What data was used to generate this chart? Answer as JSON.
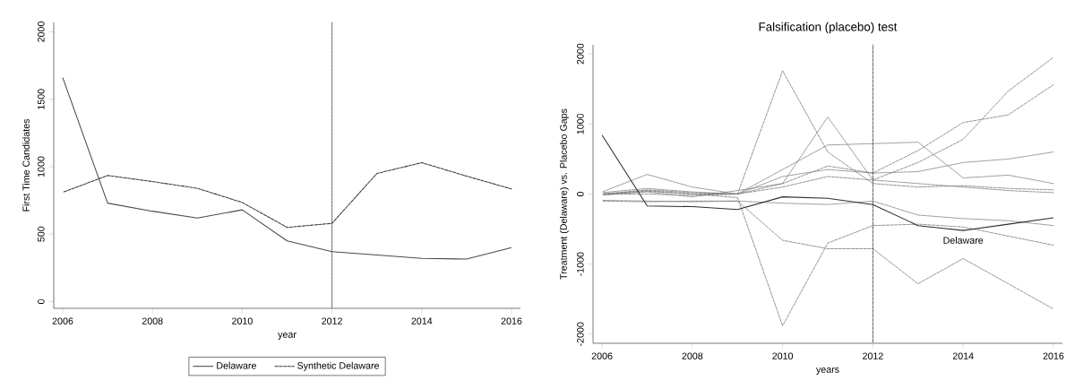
{
  "chart_data": [
    {
      "type": "line",
      "xlabel": "year",
      "ylabel": "First Time Candidates",
      "x": [
        2006,
        2007,
        2008,
        2009,
        2010,
        2011,
        2012,
        2013,
        2014,
        2015,
        2016
      ],
      "series": [
        {
          "name": "Delaware",
          "color": "#4a4a4a",
          "line_style": "solid",
          "values": [
            1660,
            730,
            670,
            620,
            680,
            450,
            370,
            345,
            320,
            315,
            400
          ]
        },
        {
          "name": "Synthetic Delaware",
          "color": "#3a3a3a",
          "line_style": "dashed",
          "values": [
            810,
            935,
            890,
            840,
            735,
            550,
            580,
            950,
            1030,
            930,
            835
          ]
        }
      ],
      "xlim": [
        2005.8,
        2016.2
      ],
      "ylim": [
        -50,
        2070
      ],
      "xticks": [
        2006,
        2008,
        2010,
        2012,
        2014,
        2016
      ],
      "yticks": [
        0,
        500,
        1000,
        1500,
        2000
      ],
      "ref_lines": [
        {
          "axis": "x",
          "value": 2012,
          "line_style": "dotted",
          "color": "#333333"
        }
      ],
      "legend": "bottom"
    },
    {
      "type": "line",
      "title": "Falsification (placebo) test",
      "xlabel": "years",
      "ylabel": "Treatment (Delaware) vs. Placebo Gaps",
      "x": [
        2006,
        2007,
        2008,
        2009,
        2010,
        2011,
        2012,
        2013,
        2014,
        2015,
        2016
      ],
      "series": [
        {
          "color": "#7a7a7a",
          "line_style": "dashed",
          "values": [
            0,
            60,
            20,
            0,
            1760,
            600,
            150,
            100,
            120,
            80,
            60
          ]
        },
        {
          "color": "#7a7a7a",
          "line_style": "dashed",
          "values": [
            -20,
            40,
            0,
            -50,
            -1880,
            -700,
            -450,
            -430,
            -470,
            -600,
            -730
          ]
        },
        {
          "color": "#7a7a7a",
          "line_style": "dotted",
          "values": [
            0,
            30,
            -40,
            50,
            150,
            1100,
            200,
            150,
            100,
            50,
            20
          ]
        },
        {
          "color": "#7a7a7a",
          "line_style": "dashed",
          "values": [
            -100,
            -110,
            -100,
            -100,
            -660,
            -780,
            -780,
            -1280,
            -920,
            -1280,
            -1640
          ]
        },
        {
          "color": "#7a7a7a",
          "line_style": "dotted",
          "values": [
            20,
            80,
            30,
            0,
            350,
            700,
            720,
            740,
            230,
            270,
            150
          ]
        },
        {
          "color": "#7a7a7a",
          "line_style": "dashed",
          "values": [
            0,
            50,
            0,
            0,
            150,
            400,
            300,
            620,
            1020,
            1130,
            1560
          ]
        },
        {
          "color": "#7a7a7a",
          "line_style": "dashed",
          "values": [
            0,
            0,
            -20,
            0,
            100,
            250,
            200,
            450,
            780,
            1470,
            1950
          ]
        },
        {
          "color": "#7a7a7a",
          "line_style": "dotted",
          "values": [
            30,
            280,
            100,
            0,
            250,
            350,
            300,
            320,
            450,
            500,
            600
          ]
        },
        {
          "color": "#7a7a7a",
          "line_style": "dotted",
          "values": [
            -90,
            -100,
            -110,
            -100,
            -130,
            -150,
            -100,
            -300,
            -350,
            -380,
            -450
          ]
        },
        {
          "name": "Delaware",
          "color": "#2e2e2e",
          "line_style": "solid",
          "values": [
            840,
            -170,
            -180,
            -220,
            -40,
            -60,
            -150,
            -450,
            -520,
            -430,
            -340
          ]
        }
      ],
      "xlim": [
        2005.8,
        2016.2
      ],
      "ylim": [
        -2130,
        2130
      ],
      "xticks": [
        2006,
        2008,
        2010,
        2012,
        2014,
        2016
      ],
      "yticks": [
        -2000,
        -1000,
        0,
        1000,
        2000
      ],
      "ref_lines": [
        {
          "axis": "x",
          "value": 2012,
          "line_style": "dashed",
          "color": "#333333"
        }
      ]
    }
  ]
}
